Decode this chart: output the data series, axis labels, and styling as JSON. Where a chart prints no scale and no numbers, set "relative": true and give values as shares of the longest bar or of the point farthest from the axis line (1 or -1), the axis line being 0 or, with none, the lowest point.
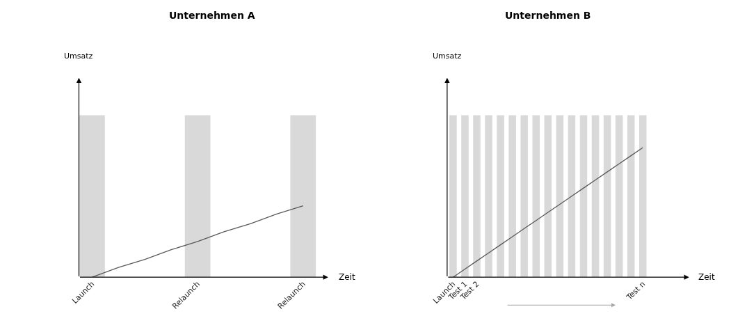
{
  "chart_data": [
    {
      "type": "bar",
      "title": "Unternehmen A",
      "xlabel": "Zeit",
      "ylabel": "Umsatz",
      "relative": true,
      "categories": [
        "Launch",
        null,
        null,
        null,
        "Relaunch",
        null,
        null,
        null,
        "Relaunch"
      ],
      "series": [
        {
          "color": "#d9d9d9",
          "values": [
            1,
            null,
            null,
            null,
            1,
            null,
            null,
            null,
            1
          ]
        },
        {
          "type": "line",
          "color": "#595959",
          "values": [
            0,
            0.06,
            0.11,
            0.17,
            0.22,
            0.28,
            0.33,
            0.39,
            0.44
          ]
        }
      ]
    },
    {
      "type": "bar",
      "title": "Unternehmen B",
      "xlabel": "Zeit",
      "ylabel": "Umsatz",
      "relative": true,
      "categories": [
        "Launch",
        "Test 1",
        "Test 2",
        null,
        null,
        null,
        null,
        null,
        null,
        null,
        null,
        null,
        null,
        null,
        null,
        null,
        "Test n"
      ],
      "series": [
        {
          "color": "#d9d9d9",
          "values": [
            1,
            1,
            1,
            1,
            1,
            1,
            1,
            1,
            1,
            1,
            1,
            1,
            1,
            1,
            1,
            1,
            1
          ]
        },
        {
          "type": "line",
          "color": "#595959",
          "values": [
            0,
            0.05,
            0.1,
            0.15,
            0.2,
            0.25,
            0.3,
            0.35,
            0.4,
            0.45,
            0.5,
            0.55,
            0.6,
            0.65,
            0.7,
            0.75,
            0.8
          ]
        }
      ]
    }
  ]
}
